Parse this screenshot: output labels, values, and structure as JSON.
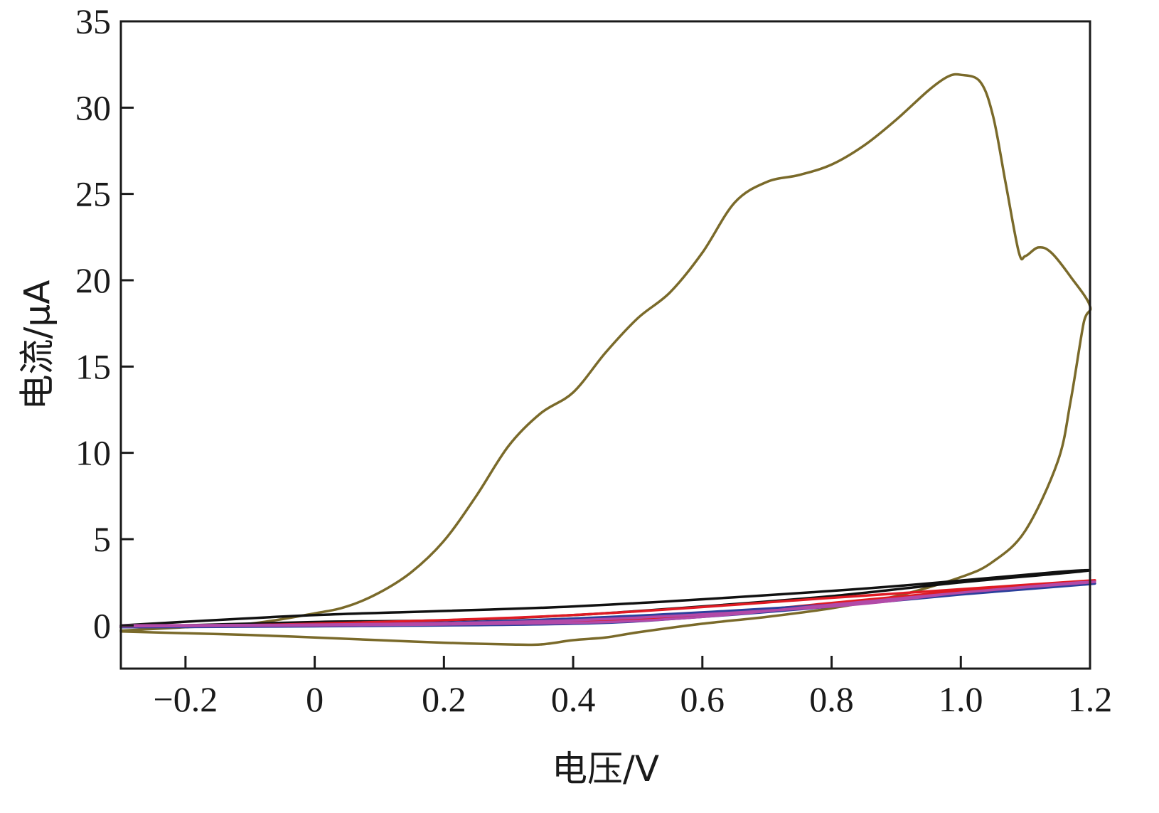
{
  "chart_data": {
    "type": "line",
    "xlabel": "电压/V",
    "ylabel": "电流/μA",
    "xlim": [
      -0.3,
      1.2
    ],
    "ylim": [
      -2.5,
      35
    ],
    "x_ticks": [
      {
        "value": -0.2,
        "label": "−0.2"
      },
      {
        "value": 0,
        "label": "0"
      },
      {
        "value": 0.2,
        "label": "0.2"
      },
      {
        "value": 0.4,
        "label": "0.4"
      },
      {
        "value": 0.6,
        "label": "0.6"
      },
      {
        "value": 0.8,
        "label": "0.8"
      },
      {
        "value": 1.0,
        "label": "1.0"
      },
      {
        "value": 1.2,
        "label": "1.2"
      }
    ],
    "y_ticks": [
      {
        "value": 0,
        "label": "0"
      },
      {
        "value": 5,
        "label": "5"
      },
      {
        "value": 10,
        "label": "10"
      },
      {
        "value": 15,
        "label": "15"
      },
      {
        "value": 20,
        "label": "20"
      },
      {
        "value": 25,
        "label": "25"
      },
      {
        "value": 30,
        "label": "30"
      },
      {
        "value": 35,
        "label": "35"
      }
    ],
    "grid": false,
    "legend": "none",
    "series": [
      {
        "color": "#7a6a2a",
        "points": [
          [
            -0.3,
            -0.3
          ],
          [
            -0.2,
            -0.1
          ],
          [
            -0.1,
            0.1
          ],
          [
            0,
            0.7
          ],
          [
            0.05,
            1.1
          ],
          [
            0.1,
            1.9
          ],
          [
            0.15,
            3.1
          ],
          [
            0.2,
            4.9
          ],
          [
            0.25,
            7.5
          ],
          [
            0.3,
            10.4
          ],
          [
            0.35,
            12.3
          ],
          [
            0.4,
            13.5
          ],
          [
            0.45,
            15.8
          ],
          [
            0.5,
            17.8
          ],
          [
            0.55,
            19.3
          ],
          [
            0.6,
            21.6
          ],
          [
            0.65,
            24.5
          ],
          [
            0.7,
            25.7
          ],
          [
            0.75,
            26.1
          ],
          [
            0.8,
            26.7
          ],
          [
            0.85,
            27.8
          ],
          [
            0.9,
            29.3
          ],
          [
            0.95,
            31.0
          ],
          [
            0.98,
            31.8
          ],
          [
            1.0,
            31.9
          ],
          [
            1.03,
            31.5
          ],
          [
            1.05,
            29.5
          ],
          [
            1.07,
            25.5
          ],
          [
            1.09,
            21.6
          ],
          [
            1.1,
            21.4
          ],
          [
            1.12,
            21.9
          ],
          [
            1.14,
            21.6
          ],
          [
            1.17,
            20.2
          ],
          [
            1.2,
            18.5
          ],
          [
            1.19,
            17.5
          ],
          [
            1.17,
            13.0
          ],
          [
            1.15,
            9.5
          ],
          [
            1.1,
            5.5
          ],
          [
            1.05,
            3.7
          ],
          [
            1.0,
            2.8
          ],
          [
            0.9,
            1.7
          ],
          [
            0.8,
            1.0
          ],
          [
            0.7,
            0.5
          ],
          [
            0.6,
            0.1
          ],
          [
            0.5,
            -0.4
          ],
          [
            0.45,
            -0.7
          ],
          [
            0.4,
            -0.85
          ],
          [
            0.35,
            -1.1
          ],
          [
            0.3,
            -1.1
          ],
          [
            0.2,
            -1.0
          ],
          [
            0.1,
            -0.85
          ],
          [
            0,
            -0.7
          ],
          [
            -0.1,
            -0.55
          ],
          [
            -0.2,
            -0.45
          ],
          [
            -0.3,
            -0.35
          ]
        ]
      },
      {
        "color": "#111111",
        "points": [
          [
            -0.3,
            0.0
          ],
          [
            0,
            0.6
          ],
          [
            0.4,
            1.1
          ],
          [
            0.8,
            2.0
          ],
          [
            1.0,
            2.6
          ],
          [
            1.15,
            3.1
          ],
          [
            1.2,
            3.2
          ],
          [
            1.15,
            3.0
          ],
          [
            1.0,
            2.5
          ],
          [
            0.8,
            1.7
          ],
          [
            0.6,
            1.1
          ],
          [
            0.4,
            0.6
          ],
          [
            0.2,
            0.3
          ],
          [
            0,
            0.2
          ],
          [
            -0.3,
            -0.1
          ]
        ]
      },
      {
        "color": "#e01b24",
        "points": [
          [
            -0.3,
            -0.1
          ],
          [
            0,
            0.1
          ],
          [
            0.4,
            0.6
          ],
          [
            0.8,
            1.6
          ],
          [
            1.0,
            2.1
          ],
          [
            1.2,
            2.6
          ],
          [
            1.15,
            2.45
          ],
          [
            1.0,
            2.0
          ],
          [
            0.8,
            1.3
          ],
          [
            0.6,
            0.6
          ],
          [
            0.4,
            0.2
          ],
          [
            0,
            0.0
          ],
          [
            -0.3,
            -0.1
          ]
        ]
      },
      {
        "color": "#2b3f9c",
        "points": [
          [
            -0.3,
            -0.05
          ],
          [
            0,
            0.0
          ],
          [
            0.4,
            0.4
          ],
          [
            0.8,
            1.2
          ],
          [
            1.0,
            1.8
          ],
          [
            1.2,
            2.4
          ],
          [
            1.15,
            2.3
          ],
          [
            1.0,
            1.8
          ],
          [
            0.8,
            1.1
          ],
          [
            0.6,
            0.5
          ],
          [
            0.4,
            0.1
          ],
          [
            0,
            -0.05
          ],
          [
            -0.3,
            -0.1
          ]
        ]
      },
      {
        "color": "#b24aa8",
        "points": [
          [
            -0.3,
            0.0
          ],
          [
            0,
            0.05
          ],
          [
            0.4,
            0.3
          ],
          [
            0.8,
            1.1
          ],
          [
            1.0,
            1.9
          ],
          [
            1.2,
            2.5
          ],
          [
            1.15,
            2.4
          ],
          [
            1.0,
            1.9
          ],
          [
            0.8,
            1.2
          ],
          [
            0.6,
            0.5
          ],
          [
            0.4,
            0.15
          ],
          [
            0,
            0.0
          ],
          [
            -0.3,
            -0.05
          ]
        ]
      }
    ]
  }
}
